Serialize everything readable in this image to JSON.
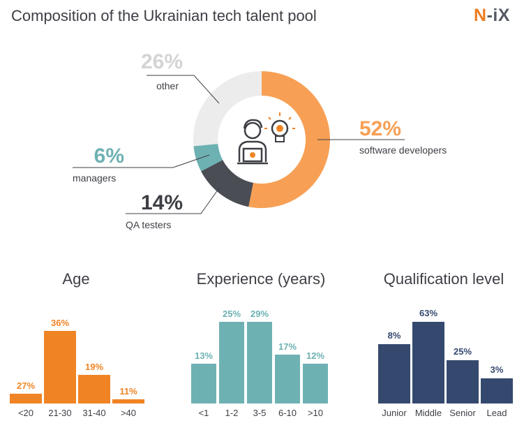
{
  "title": "Composition of the Ukrainian tech talent pool",
  "logo": {
    "mark": "N",
    "rest": "-iX"
  },
  "chart_data": [
    {
      "type": "pie",
      "title": "",
      "segments": [
        {
          "label": "software developers",
          "value": 52,
          "value_label": "52%",
          "color": "#f7a055"
        },
        {
          "label": "QA testers",
          "value": 14,
          "value_label": "14%",
          "color": "#4a4d54"
        },
        {
          "label": "managers",
          "value": 6,
          "value_label": "6%",
          "color": "#6eb1b3"
        },
        {
          "label": "other",
          "value": 26,
          "value_label": "26%",
          "color": "#ececec"
        }
      ],
      "value_label_colors": [
        "#f7a055",
        "#3d3f45",
        "#6eb1b3",
        "#d4d4d4"
      ]
    },
    {
      "type": "bar",
      "title": "Age",
      "categories": [
        "<20",
        "21-30",
        "31-40",
        ">40"
      ],
      "values": [
        27,
        36,
        19,
        11
      ],
      "value_labels": [
        "27%",
        "36%",
        "19%",
        "11%"
      ],
      "color": "#f08424"
    },
    {
      "type": "bar",
      "title": "Experience (years)",
      "categories": [
        "<1",
        "1-2",
        "3-5",
        "6-10",
        ">10"
      ],
      "values": [
        13,
        25,
        29,
        17,
        12
      ],
      "value_labels": [
        "13%",
        "25%",
        "29%",
        "17%",
        "12%"
      ],
      "color": "#6eb1b3"
    },
    {
      "type": "bar",
      "title": "Qualification level",
      "categories": [
        "Junior",
        "Middle",
        "Senior",
        "Lead"
      ],
      "values": [
        8,
        63,
        25,
        3
      ],
      "value_labels": [
        "8%",
        "63%",
        "25%",
        "3%"
      ],
      "color": "#35496e"
    }
  ]
}
